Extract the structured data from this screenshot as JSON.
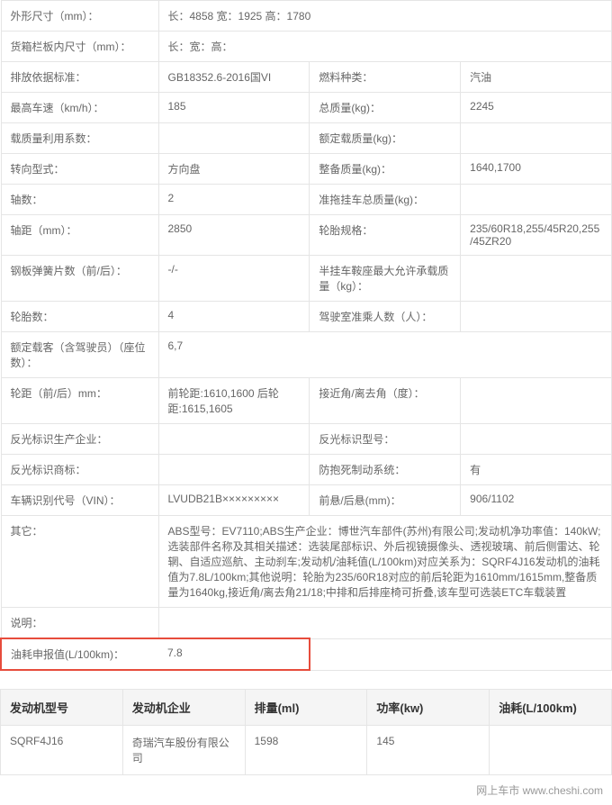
{
  "watermark": "chesh",
  "specs": {
    "dim_label": "外形尺寸（mm）：",
    "dim_val": "长：4858 宽：1925 高：1780",
    "cargo_label": "货箱栏板内尺寸（mm）：",
    "cargo_val": "长：宽：高：",
    "emission_label": "排放依据标准：",
    "emission_val": "GB18352.6-2016国VI",
    "fuel_label": "燃料种类：",
    "fuel_val": "汽油",
    "speed_label": "最高车速（km/h）：",
    "speed_val": "185",
    "mass_label": "总质量(kg)：",
    "mass_val": "2245",
    "load_label": "载质量利用系数：",
    "load_val": "",
    "rated_label": "额定载质量(kg)：",
    "rated_val": "",
    "steer_label": "转向型式：",
    "steer_val": "方向盘",
    "curb_label": "整备质量(kg)：",
    "curb_val": "1640,1700",
    "axle_label": "轴数：",
    "axle_val": "2",
    "trailer_label": "准拖挂车总质量(kg)：",
    "trailer_val": "",
    "wheelbase_label": "轴距（mm）：",
    "wheelbase_val": "2850",
    "tire_label": "轮胎规格：",
    "tire_val": "235/60R18,255/45R20,255/45ZR20",
    "spring_label": "钢板弹簧片数（前/后）：",
    "spring_val": "-/-",
    "semi_label": "半挂车鞍座最大允许承载质量（kg）：",
    "semi_val": "",
    "tires_label": "轮胎数：",
    "tires_val": "4",
    "cab_label": "驾驶室准乘人数（人）：",
    "cab_val": "",
    "seats_label": "额定载客（含驾驶员）（座位数）：",
    "seats_val": "6,7",
    "track_label": "轮距（前/后）mm：",
    "track_val": "前轮距:1610,1600 后轮距:1615,1605",
    "angle_label": "接近角/离去角（度）：",
    "angle_val": "",
    "refl_label": "反光标识生产企业：",
    "refl_val": "",
    "refl2_label": "反光标识型号：",
    "refl2_val": "",
    "refl3_label": "反光标识商标：",
    "refl3_val": "",
    "abs_label": "防抱死制动系统：",
    "abs_val": "有",
    "vin_label": "车辆识别代号（VIN）：",
    "vin_val": "LVUDB21B×××××××××",
    "overhang_label": "前悬/后悬(mm)：",
    "overhang_val": "906/1102",
    "other_label": "其它：",
    "other_val": "ABS型号：EV7110;ABS生产企业：博世汽车部件(苏州)有限公司;发动机净功率值：140kW;选装部件名称及其相关描述：选装尾部标识、外后视镜摄像头、透视玻璃、前后侧雷达、轮辋、自适应巡航、主动刹车;发动机/油耗值(L/100km)对应关系为：SQRF4J16发动机的油耗值为7.8L/100km;其他说明：轮胎为235/60R18对应的前后轮距为1610mm/1615mm,整备质量为1640kg,接近角/离去角21/18;中排和后排座椅可折叠,该车型可选装ETC车载装置",
    "note_label": "说明：",
    "note_val": "",
    "fc_label": "油耗申报值(L/100km)：",
    "fc_val": "7.8"
  },
  "engine": {
    "h1": "发动机型号",
    "h2": "发动机企业",
    "h3": "排量(ml)",
    "h4": "功率(kw)",
    "h5": "油耗(L/100km)",
    "v1": "SQRF4J16",
    "v2": "奇瑞汽车股份有限公司",
    "v3": "1598",
    "v4": "145",
    "v5": ""
  },
  "footer": "网上车市  www.cheshi.com"
}
